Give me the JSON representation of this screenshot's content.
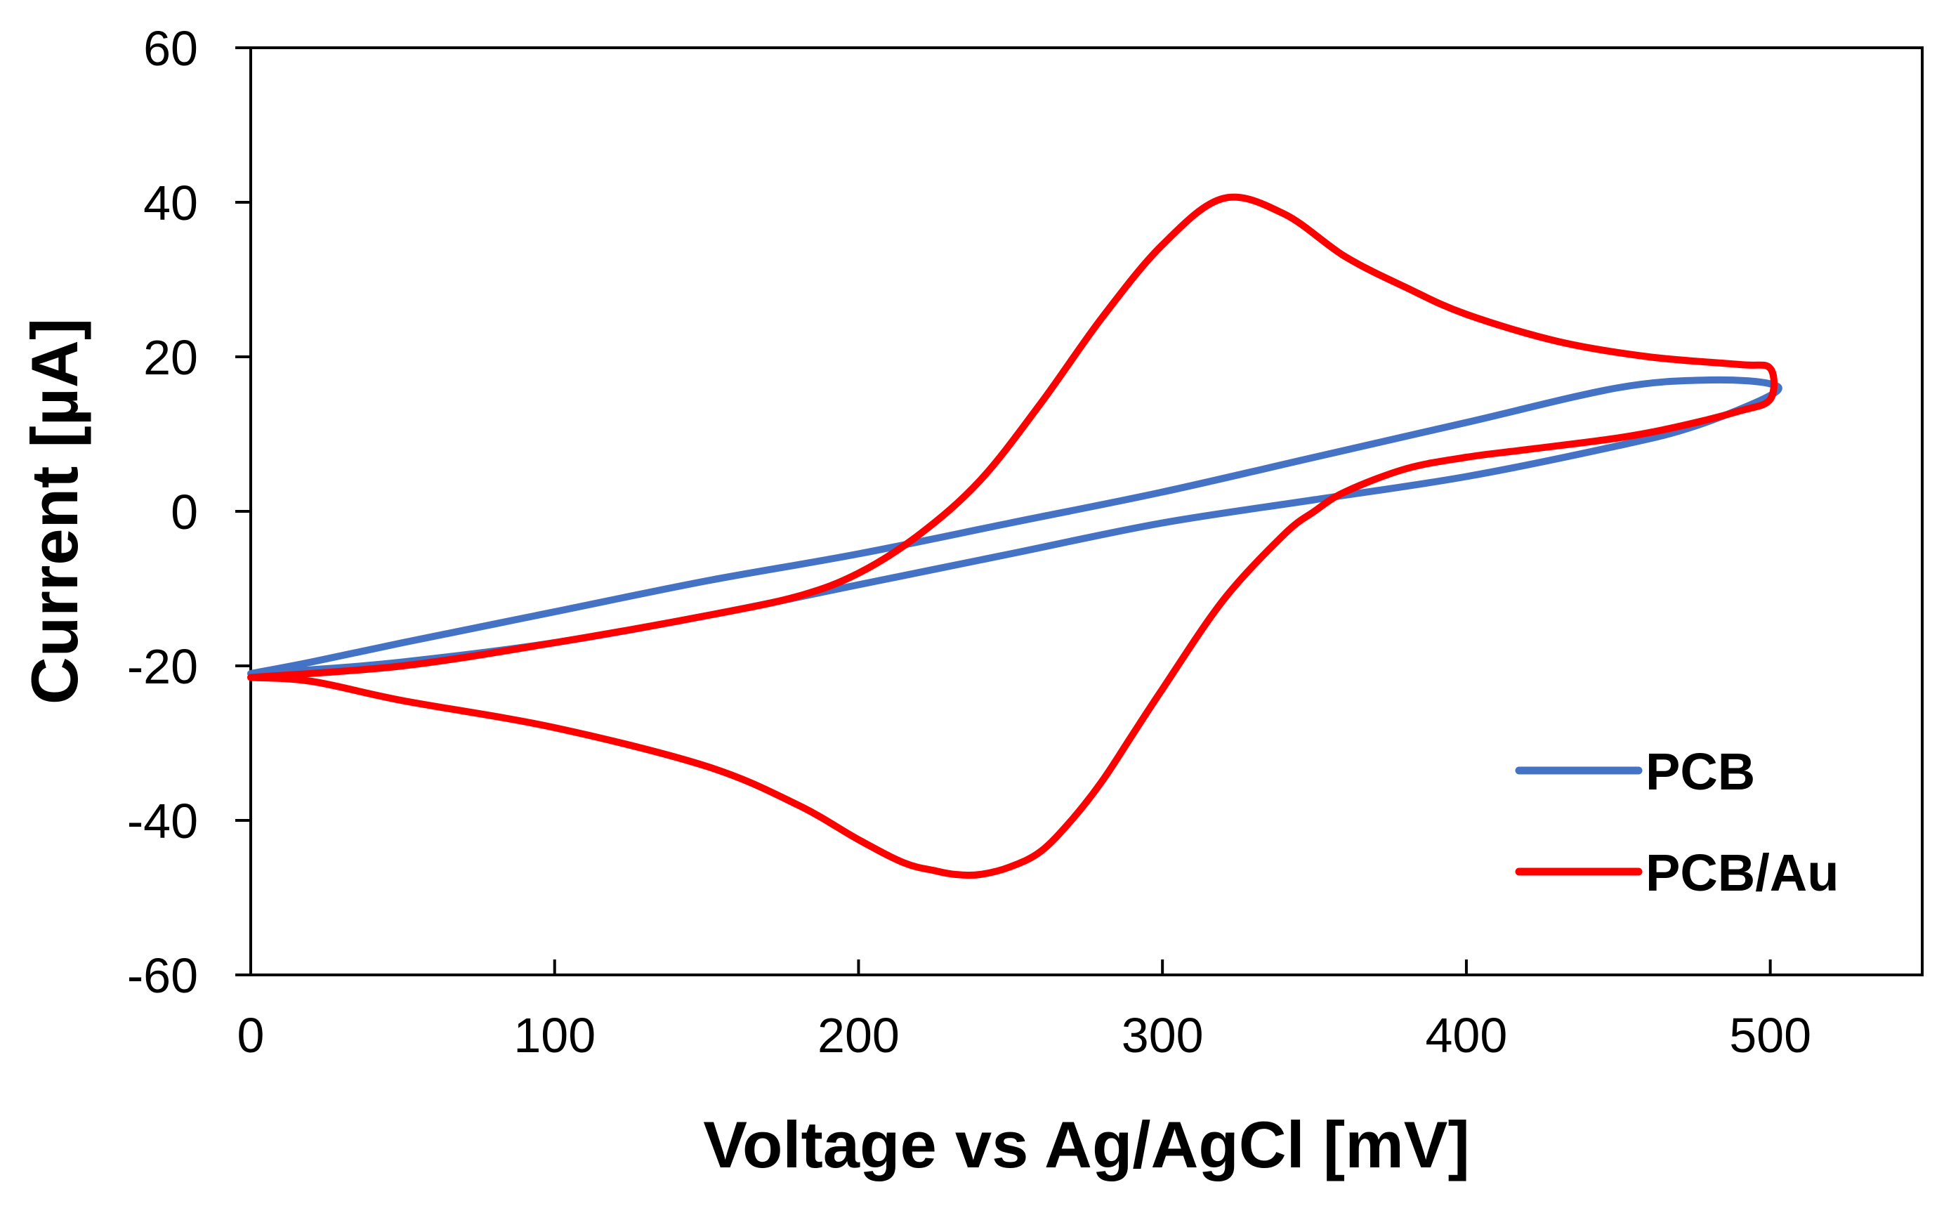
{
  "chart_data": {
    "type": "line",
    "title": "",
    "xlabel": "Voltage vs Ag/AgCl [mV]",
    "ylabel": "Current [µA]",
    "xlim": [
      0,
      550
    ],
    "ylim": [
      -60,
      60
    ],
    "xticks": [
      0,
      100,
      200,
      300,
      400,
      500
    ],
    "yticks": [
      60,
      40,
      20,
      0,
      -20,
      -40,
      -60
    ],
    "xtick_labels": [
      "0",
      "100",
      "200",
      "300",
      "400",
      "500"
    ],
    "ytick_labels": [
      "60",
      "40",
      "20",
      "0",
      "-20",
      "-40",
      "-60"
    ],
    "grid": false,
    "legend_position": "bottom-right",
    "series": [
      {
        "name": "PCB",
        "color": "#4472C4",
        "x": [
          0,
          20,
          50,
          100,
          150,
          200,
          250,
          300,
          350,
          400,
          450,
          475,
          500,
          500,
          480,
          450,
          400,
          350,
          300,
          250,
          200,
          150,
          100,
          50,
          20,
          0
        ],
        "y": [
          -21,
          -20.5,
          -19.5,
          -17,
          -13.5,
          -9.5,
          -5.5,
          -1.5,
          1.5,
          4.5,
          8.5,
          11,
          15,
          16.5,
          17,
          16,
          11.5,
          7,
          2.5,
          -1.5,
          -5.5,
          -9,
          -13,
          -17,
          -19.5,
          -21
        ]
      },
      {
        "name": "PCB/Au",
        "color": "#FF0000",
        "x": [
          0,
          50,
          100,
          150,
          180,
          200,
          220,
          240,
          260,
          280,
          300,
          320,
          340,
          360,
          380,
          400,
          430,
          460,
          490,
          500,
          500,
          490,
          470,
          450,
          420,
          400,
          380,
          360,
          350,
          340,
          320,
          300,
          290,
          280,
          270,
          260,
          250,
          240,
          232,
          225,
          215,
          200,
          180,
          150,
          100,
          50,
          20,
          0
        ],
        "y": [
          -21.5,
          -20,
          -17,
          -13.5,
          -11,
          -8,
          -3,
          4,
          14,
          25,
          34.5,
          40.5,
          38.5,
          33,
          29,
          25.5,
          22,
          20,
          19,
          18.5,
          14.5,
          13,
          11,
          9.5,
          8,
          7,
          5.5,
          2.5,
          0,
          -3,
          -11.5,
          -23,
          -29,
          -35,
          -40,
          -44,
          -46,
          -47,
          -47,
          -46.5,
          -45.5,
          -42.5,
          -38,
          -33,
          -28,
          -24.5,
          -22,
          -21.5
        ]
      }
    ]
  }
}
